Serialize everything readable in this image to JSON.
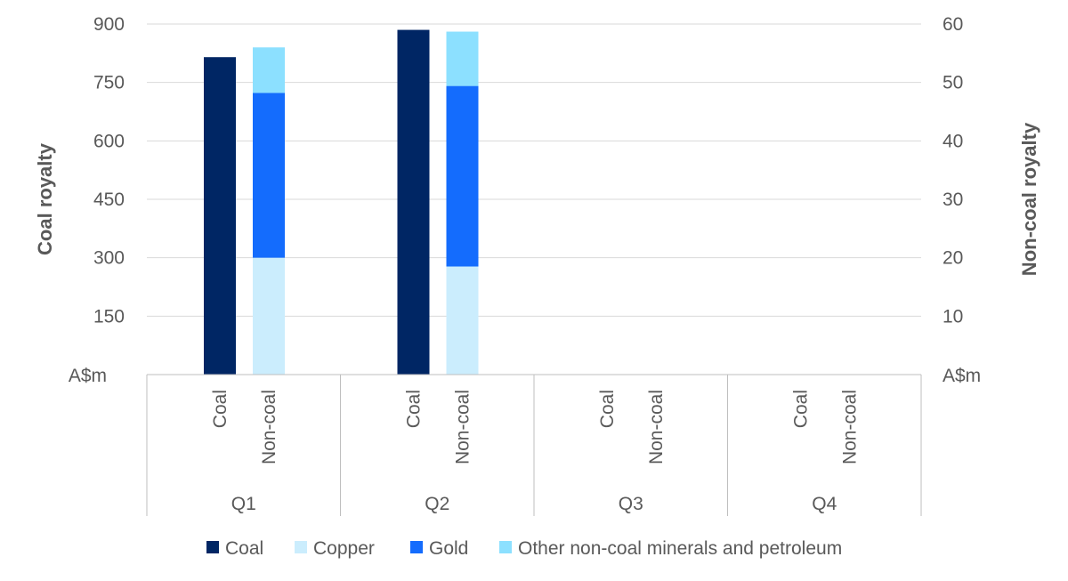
{
  "chart_data": {
    "type": "bar",
    "stacked": true,
    "groups": [
      "Q1",
      "Q2",
      "Q3",
      "Q4"
    ],
    "subcategories": [
      "Coal",
      "Non-coal"
    ],
    "y_left": {
      "label": "Coal royalty",
      "unit": "A$m",
      "ticks": [
        150,
        300,
        450,
        600,
        750,
        900
      ],
      "range": [
        0,
        900
      ]
    },
    "y_right": {
      "label": "Non-coal royalty",
      "unit": "A$m",
      "ticks": [
        10,
        20,
        30,
        40,
        50,
        60
      ],
      "range": [
        0,
        60
      ]
    },
    "series": [
      {
        "name": "Coal",
        "axis": "left",
        "subcategory": "Coal",
        "color": "#002664",
        "values": [
          815,
          885,
          null,
          null
        ]
      },
      {
        "name": "Copper",
        "axis": "right",
        "subcategory": "Non-coal",
        "color": "#CBEDFD",
        "values": [
          20,
          18.5,
          null,
          null
        ]
      },
      {
        "name": "Gold",
        "axis": "right",
        "subcategory": "Non-coal",
        "color": "#146CFD",
        "values": [
          28.2,
          30.9,
          null,
          null
        ]
      },
      {
        "name": "Other non-coal minerals and petroleum",
        "axis": "right",
        "subcategory": "Non-coal",
        "color": "#8CE0FF",
        "values": [
          7.8,
          9.3,
          null,
          null
        ]
      }
    ],
    "grid": true,
    "legend_position": "bottom"
  }
}
